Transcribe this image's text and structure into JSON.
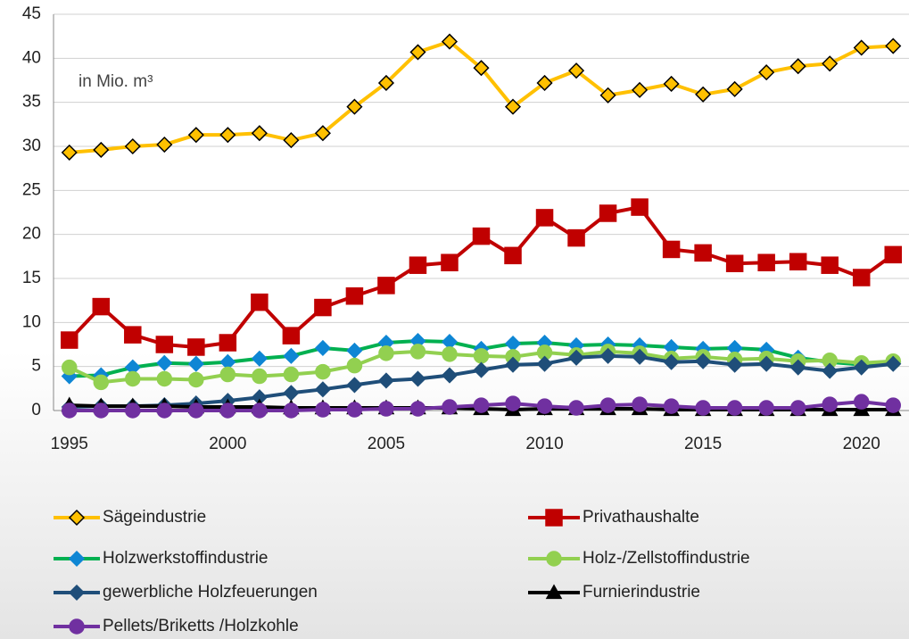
{
  "chart_data": {
    "type": "line",
    "annotation": "in Mio. m³",
    "x": [
      1995,
      1996,
      1997,
      1998,
      1999,
      2000,
      2001,
      2002,
      2003,
      2004,
      2005,
      2006,
      2007,
      2008,
      2009,
      2010,
      2011,
      2012,
      2013,
      2014,
      2015,
      2016,
      2017,
      2018,
      2019,
      2020,
      2021
    ],
    "xlim": [
      1994.5,
      2021.5
    ],
    "xticks": [
      1995,
      2000,
      2005,
      2010,
      2015,
      2020
    ],
    "ylim": [
      0,
      45
    ],
    "yticks": [
      0,
      5,
      10,
      15,
      20,
      25,
      30,
      35,
      40,
      45
    ],
    "grid": true,
    "series": [
      {
        "name": "Sägeindustrie",
        "color": "#FFC000",
        "marker": "diamond",
        "marker_color": "#FFC000",
        "values": [
          29.3,
          29.6,
          30.0,
          30.2,
          31.3,
          31.3,
          31.5,
          30.7,
          31.5,
          34.5,
          37.2,
          40.7,
          41.9,
          38.9,
          34.5,
          37.2,
          38.6,
          35.8,
          36.4,
          37.1,
          35.9,
          36.5,
          38.4,
          39.1,
          39.4,
          41.2,
          41.4
        ]
      },
      {
        "name": "Privathaushalte",
        "color": "#C00000",
        "marker": "square",
        "marker_color": "#C00000",
        "values": [
          8.0,
          11.8,
          8.6,
          7.5,
          7.2,
          7.7,
          12.3,
          8.5,
          11.7,
          13.0,
          14.2,
          16.5,
          16.8,
          19.8,
          17.6,
          21.9,
          19.6,
          22.4,
          23.1,
          18.3,
          17.9,
          16.7,
          16.8,
          16.9,
          16.5,
          15.1,
          17.7
        ]
      },
      {
        "name": "Holzwerkstoffindustrie",
        "color": "#00B050",
        "marker": "diamond",
        "marker_color": "#0E86D4",
        "values": [
          3.9,
          4.0,
          4.9,
          5.4,
          5.3,
          5.5,
          5.9,
          6.2,
          7.1,
          6.8,
          7.7,
          7.9,
          7.8,
          7.0,
          7.6,
          7.7,
          7.4,
          7.5,
          7.4,
          7.2,
          7.0,
          7.1,
          6.9,
          6.0,
          5.5,
          5.2,
          5.5
        ]
      },
      {
        "name": "Holz-/Zellstoffindustrie",
        "color": "#92D050",
        "marker": "circle",
        "marker_color": "#92D050",
        "values": [
          4.9,
          3.2,
          3.6,
          3.6,
          3.5,
          4.1,
          3.9,
          4.1,
          4.4,
          5.1,
          6.5,
          6.7,
          6.4,
          6.2,
          6.1,
          6.6,
          6.3,
          6.7,
          6.5,
          5.9,
          6.1,
          5.8,
          5.9,
          5.6,
          5.7,
          5.4,
          5.6
        ]
      },
      {
        "name": "gewerbliche Holzfeuerungen",
        "color": "#1F4E79",
        "marker": "diamond",
        "marker_color": "#1F4E79",
        "values": [
          0.4,
          0.5,
          0.5,
          0.6,
          0.8,
          1.1,
          1.5,
          2.0,
          2.4,
          2.9,
          3.4,
          3.6,
          4.0,
          4.6,
          5.2,
          5.3,
          6.0,
          6.2,
          6.1,
          5.5,
          5.6,
          5.2,
          5.3,
          4.9,
          4.5,
          4.9,
          5.3
        ]
      },
      {
        "name": "Furnierindustrie",
        "color": "#000000",
        "marker": "triangle",
        "marker_color": "#000000",
        "values": [
          0.6,
          0.5,
          0.5,
          0.5,
          0.4,
          0.4,
          0.4,
          0.3,
          0.3,
          0.3,
          0.3,
          0.3,
          0.3,
          0.2,
          0.1,
          0.2,
          0.2,
          0.2,
          0.2,
          0.1,
          0.1,
          0.1,
          0.1,
          0.1,
          0.1,
          0.1,
          0.1
        ]
      },
      {
        "name": "Pellets/Briketts /Holzkohle",
        "color": "#7030A0",
        "marker": "circle",
        "marker_color": "#7030A0",
        "values": [
          0,
          0,
          0,
          0,
          0,
          0,
          0,
          0,
          0.1,
          0.1,
          0.2,
          0.2,
          0.4,
          0.6,
          0.8,
          0.5,
          0.3,
          0.6,
          0.7,
          0.5,
          0.3,
          0.3,
          0.3,
          0.3,
          0.7,
          1.0,
          0.6
        ]
      }
    ]
  }
}
